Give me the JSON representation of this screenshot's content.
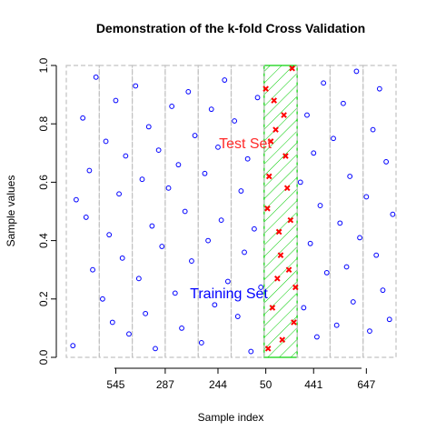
{
  "chart_data": {
    "type": "scatter",
    "title": "Demonstration of the k-fold Cross Validation",
    "xlabel": "Sample index",
    "ylabel": "Sample values",
    "x_tick_labels": [
      "545",
      "287",
      "244",
      "50",
      "441",
      "647"
    ],
    "ylim": [
      0,
      1
    ],
    "y_ticks": [
      0.0,
      0.2,
      0.4,
      0.6,
      0.8,
      1.0
    ],
    "y_tick_labels": [
      "0.0",
      "0.2",
      "0.4",
      "0.6",
      "0.8",
      "1.0"
    ],
    "folds": 10,
    "test_fold": 6,
    "annotations": {
      "test_set": "Test Set",
      "training_set": "Training Set"
    },
    "colors": {
      "training_points": "#0000ff",
      "test_points": "#ff0000",
      "test_fold_fill": "#00cc00",
      "fold_border": "#c2c2c2"
    },
    "series": [
      {
        "name": "Training Set",
        "marker": "open-circle",
        "color": "#0000ff",
        "points": [
          [
            0.2,
            0.04
          ],
          [
            0.3,
            0.54
          ],
          [
            0.5,
            0.82
          ],
          [
            0.6,
            0.48
          ],
          [
            0.7,
            0.64
          ],
          [
            0.8,
            0.3
          ],
          [
            0.9,
            0.96
          ],
          [
            1.1,
            0.2
          ],
          [
            1.2,
            0.74
          ],
          [
            1.3,
            0.42
          ],
          [
            1.4,
            0.12
          ],
          [
            1.5,
            0.88
          ],
          [
            1.6,
            0.56
          ],
          [
            1.7,
            0.34
          ],
          [
            1.8,
            0.69
          ],
          [
            1.9,
            0.08
          ],
          [
            2.1,
            0.93
          ],
          [
            2.2,
            0.27
          ],
          [
            2.3,
            0.61
          ],
          [
            2.4,
            0.15
          ],
          [
            2.5,
            0.79
          ],
          [
            2.6,
            0.45
          ],
          [
            2.7,
            0.03
          ],
          [
            2.8,
            0.71
          ],
          [
            2.9,
            0.38
          ],
          [
            3.1,
            0.58
          ],
          [
            3.2,
            0.86
          ],
          [
            3.3,
            0.22
          ],
          [
            3.4,
            0.66
          ],
          [
            3.5,
            0.1
          ],
          [
            3.6,
            0.5
          ],
          [
            3.7,
            0.91
          ],
          [
            3.8,
            0.33
          ],
          [
            3.9,
            0.76
          ],
          [
            4.1,
            0.05
          ],
          [
            4.2,
            0.63
          ],
          [
            4.3,
            0.4
          ],
          [
            4.4,
            0.85
          ],
          [
            4.5,
            0.18
          ],
          [
            4.6,
            0.72
          ],
          [
            4.7,
            0.47
          ],
          [
            4.8,
            0.95
          ],
          [
            4.9,
            0.26
          ],
          [
            5.1,
            0.81
          ],
          [
            5.2,
            0.14
          ],
          [
            5.3,
            0.57
          ],
          [
            5.4,
            0.36
          ],
          [
            5.5,
            0.68
          ],
          [
            5.6,
            0.02
          ],
          [
            5.7,
            0.44
          ],
          [
            5.8,
            0.89
          ],
          [
            5.9,
            0.24
          ],
          [
            7.1,
            0.6
          ],
          [
            7.2,
            0.17
          ],
          [
            7.3,
            0.83
          ],
          [
            7.4,
            0.39
          ],
          [
            7.5,
            0.7
          ],
          [
            7.6,
            0.07
          ],
          [
            7.7,
            0.52
          ],
          [
            7.8,
            0.94
          ],
          [
            7.9,
            0.29
          ],
          [
            8.1,
            0.75
          ],
          [
            8.2,
            0.11
          ],
          [
            8.3,
            0.46
          ],
          [
            8.4,
            0.87
          ],
          [
            8.5,
            0.31
          ],
          [
            8.6,
            0.62
          ],
          [
            8.7,
            0.19
          ],
          [
            8.8,
            0.98
          ],
          [
            8.9,
            0.41
          ],
          [
            9.1,
            0.55
          ],
          [
            9.2,
            0.09
          ],
          [
            9.3,
            0.78
          ],
          [
            9.4,
            0.35
          ],
          [
            9.5,
            0.92
          ],
          [
            9.6,
            0.23
          ],
          [
            9.7,
            0.67
          ],
          [
            9.8,
            0.13
          ],
          [
            9.9,
            0.49
          ]
        ]
      },
      {
        "name": "Test Set",
        "marker": "cross",
        "color": "#ff0000",
        "points": [
          [
            6.05,
            0.92
          ],
          [
            6.15,
            0.62
          ],
          [
            6.25,
            0.17
          ],
          [
            6.35,
            0.78
          ],
          [
            6.45,
            0.43
          ],
          [
            6.55,
            0.06
          ],
          [
            6.65,
            0.69
          ],
          [
            6.75,
            0.3
          ],
          [
            6.85,
            0.99
          ],
          [
            6.95,
            0.24
          ],
          [
            6.1,
            0.51
          ],
          [
            6.3,
            0.88
          ],
          [
            6.5,
            0.35
          ],
          [
            6.7,
            0.58
          ],
          [
            6.9,
            0.12
          ],
          [
            6.2,
            0.74
          ],
          [
            6.4,
            0.27
          ],
          [
            6.6,
            0.83
          ],
          [
            6.8,
            0.47
          ],
          [
            6.12,
            0.03
          ]
        ]
      }
    ]
  }
}
